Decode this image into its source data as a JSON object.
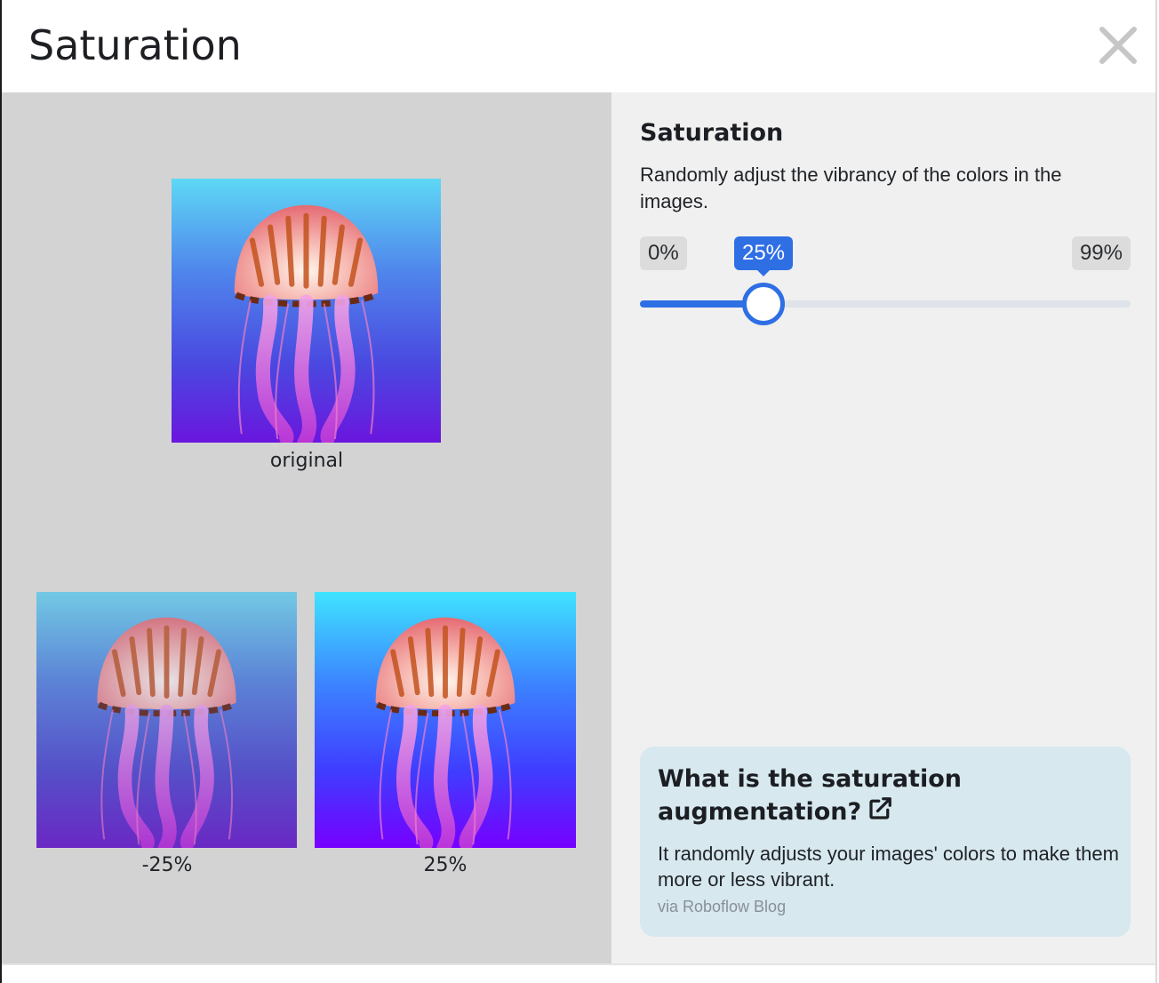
{
  "dialog": {
    "title": "Saturation",
    "close_icon": "close-icon"
  },
  "preview": {
    "original_caption": "original",
    "low_caption": "-25%",
    "high_caption": "25%"
  },
  "settings": {
    "heading": "Saturation",
    "description": "Randomly adjust the vibrancy of the colors in the images.",
    "slider": {
      "min_label": "0%",
      "max_label": "99%",
      "value_label": "25%",
      "min": 0,
      "max": 99,
      "value": 25
    }
  },
  "info_card": {
    "title": "What is the saturation augmentation?",
    "link_icon": "external-link-icon",
    "body": "It randomly adjusts your images' colors to make them more or less vibrant.",
    "source": "via Roboflow Blog"
  },
  "colors": {
    "accent": "#2f6fe4",
    "left_pane_bg": "#d3d3d3",
    "right_pane_bg": "#f0f0f0",
    "info_card_bg": "#d7e8ef"
  }
}
